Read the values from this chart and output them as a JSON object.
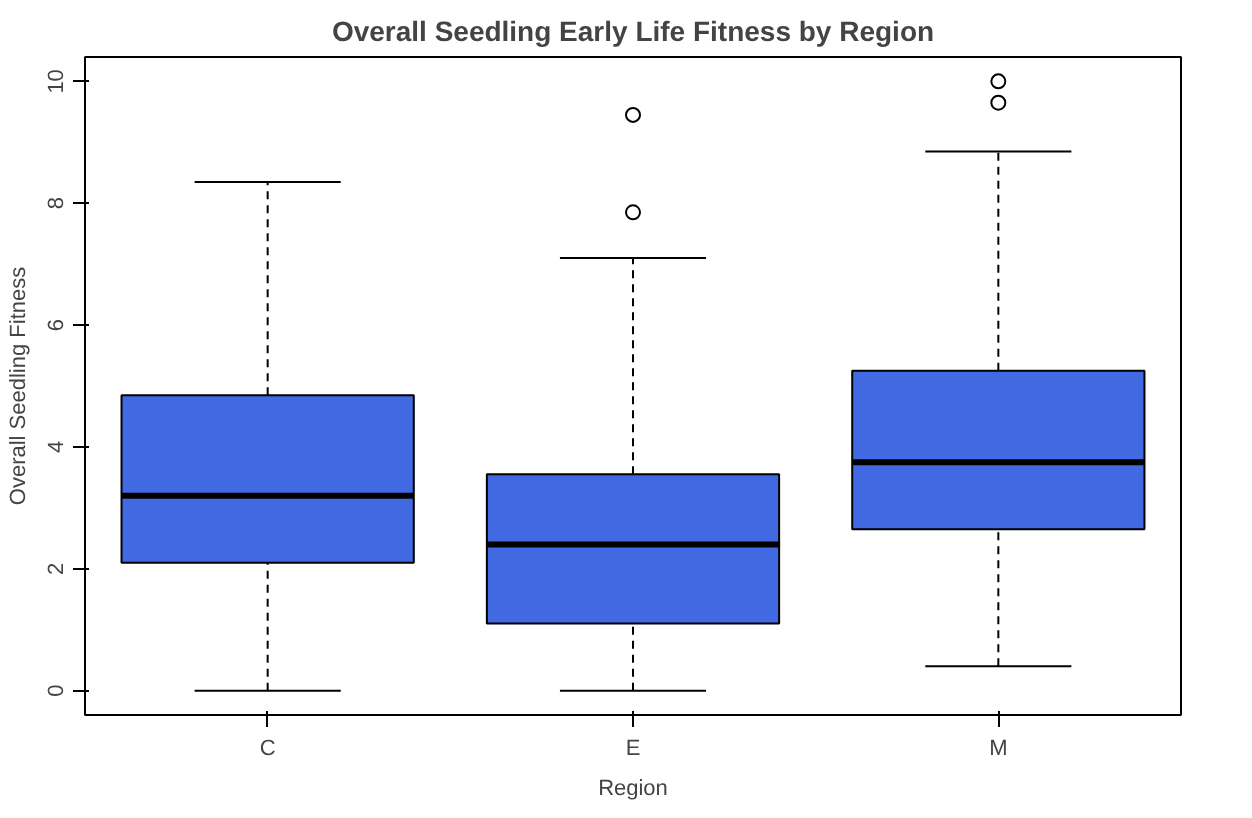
{
  "chart_data": {
    "type": "box",
    "title": "Overall Seedling Early Life Fitness by Region",
    "xlabel": "Region",
    "ylabel": "Overall Seedling Fitness",
    "categories": [
      "C",
      "E",
      "M"
    ],
    "color": "#4169e1",
    "boxes": [
      {
        "low": 0,
        "q1": 2.1,
        "median": 3.2,
        "q3": 4.85,
        "high": 8.35
      },
      {
        "low": 0,
        "q1": 1.1,
        "median": 2.4,
        "q3": 3.55,
        "high": 7.1,
        "outliers": [
          7.85,
          9.45
        ]
      },
      {
        "low": 0.4,
        "q1": 2.65,
        "median": 3.75,
        "q3": 5.25,
        "high": 8.85,
        "outliers": [
          9.65,
          10.0
        ]
      }
    ],
    "ylim": [
      -0.4,
      10.4
    ],
    "yticks": [
      0,
      2,
      4,
      6,
      8,
      10
    ],
    "grid": false,
    "line_style": "dashed"
  }
}
